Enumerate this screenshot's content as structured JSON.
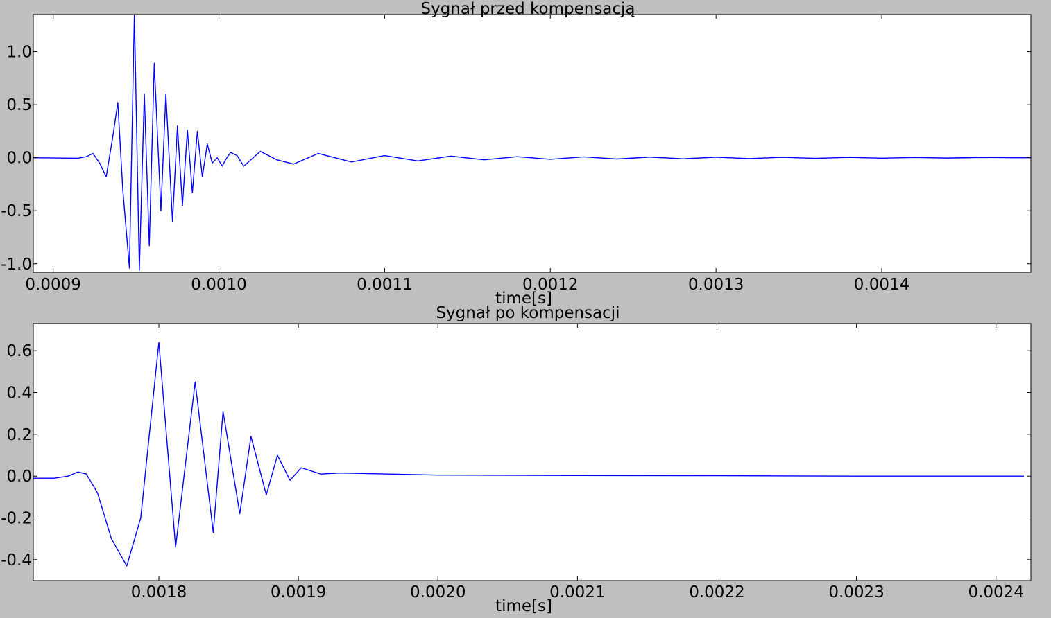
{
  "chart_data": [
    {
      "type": "line",
      "title": "Sygnał przed kompensacją",
      "xlabel": "time[s]",
      "ylabel": "",
      "xlim": [
        0.000888,
        0.00149
      ],
      "ylim": [
        -1.08,
        1.35
      ],
      "xticks": [
        0.0009,
        0.001,
        0.0011,
        0.0012,
        0.0013,
        0.0014
      ],
      "xtick_labels": [
        "0.0009",
        "0.0010",
        "0.0011",
        "0.0012",
        "0.0013",
        "0.0014"
      ],
      "yticks": [
        -1.0,
        -0.5,
        0.0,
        0.5,
        1.0
      ],
      "ytick_labels": [
        "-1.0",
        "-0.5",
        "0.0",
        "0.5",
        "1.0"
      ],
      "grid": false,
      "series": [
        {
          "color": "#0000ff",
          "x": [
            0.000888,
            0.000915,
            0.00092,
            0.000924,
            0.000928,
            0.000932,
            0.000936,
            0.000939,
            0.000942,
            0.000946,
            0.000949,
            0.000952,
            0.000955,
            0.000958,
            0.000961,
            0.000965,
            0.000968,
            0.000972,
            0.000975,
            0.000978,
            0.000981,
            0.000984,
            0.000987,
            0.00099,
            0.000993,
            0.000996,
            0.000999,
            0.001002,
            0.001004,
            0.001007,
            0.001011,
            0.001015,
            0.001025,
            0.001035,
            0.001045,
            0.00106,
            0.00108,
            0.0011,
            0.00112,
            0.00114,
            0.00116,
            0.00118,
            0.0012,
            0.00122,
            0.00124,
            0.00126,
            0.00128,
            0.0013,
            0.00132,
            0.00134,
            0.00136,
            0.00138,
            0.0014,
            0.00142,
            0.00144,
            0.00146,
            0.00148,
            0.00149
          ],
          "y": [
            0.0,
            -0.005,
            0.01,
            0.04,
            -0.05,
            -0.18,
            0.2,
            0.52,
            -0.3,
            -1.04,
            1.36,
            -1.06,
            0.6,
            -0.83,
            0.89,
            -0.5,
            0.6,
            -0.6,
            0.3,
            -0.45,
            0.26,
            -0.33,
            0.25,
            -0.18,
            0.13,
            -0.05,
            0.0,
            -0.08,
            -0.02,
            0.05,
            0.02,
            -0.08,
            0.06,
            -0.02,
            -0.06,
            0.04,
            -0.04,
            0.02,
            -0.03,
            0.015,
            -0.02,
            0.01,
            -0.015,
            0.008,
            -0.012,
            0.006,
            -0.01,
            0.005,
            -0.008,
            0.004,
            -0.006,
            0.003,
            -0.004,
            0.002,
            -0.003,
            0.002,
            0.0,
            0.0
          ]
        }
      ]
    },
    {
      "type": "line",
      "title": "Sygnał po kompensacji",
      "xlabel": "time[s]",
      "ylabel": "",
      "xlim": [
        0.00171,
        0.002425
      ],
      "ylim": [
        -0.5,
        0.73
      ],
      "xticks": [
        0.0018,
        0.0019,
        0.002,
        0.0021,
        0.0022,
        0.0023,
        0.0024
      ],
      "xtick_labels": [
        "0.0018",
        "0.0019",
        "0.0020",
        "0.0021",
        "0.0022",
        "0.0023",
        "0.0024"
      ],
      "yticks": [
        -0.4,
        -0.2,
        0.0,
        0.2,
        0.4,
        0.6
      ],
      "ytick_labels": [
        "-0.4",
        "-0.2",
        "0.0",
        "0.2",
        "0.4",
        "0.6"
      ],
      "grid": false,
      "series": [
        {
          "color": "#0000ff",
          "x": [
            0.00171,
            0.001725,
            0.001735,
            0.001742,
            0.001748,
            0.001756,
            0.001766,
            0.001777,
            0.001787,
            0.0018,
            0.001812,
            0.001826,
            0.001839,
            0.001846,
            0.001858,
            0.001866,
            0.001877,
            0.001885,
            0.001894,
            0.001902,
            0.001916,
            0.00193,
            0.002,
            0.0021,
            0.0022,
            0.0023,
            0.00242
          ],
          "y": [
            -0.01,
            -0.01,
            0.0,
            0.02,
            0.01,
            -0.08,
            -0.3,
            -0.43,
            -0.2,
            0.64,
            -0.34,
            0.45,
            -0.27,
            0.31,
            -0.18,
            0.19,
            -0.09,
            0.1,
            -0.02,
            0.04,
            0.01,
            0.015,
            0.005,
            0.003,
            0.002,
            0.0,
            0.0
          ]
        }
      ]
    }
  ]
}
